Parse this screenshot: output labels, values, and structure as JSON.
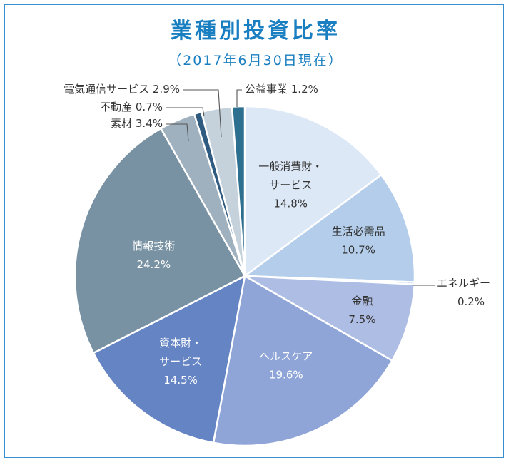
{
  "header": {
    "title": "業種別投資比率",
    "subtitle": "（2017年6月30日現在）"
  },
  "chart_data": {
    "type": "pie",
    "title": "業種別投資比率",
    "subtitle": "（2017年6月30日現在）",
    "slices": [
      {
        "name": "一般消費財・サービス",
        "lines": [
          "一般消費財・",
          "サービス"
        ],
        "value": 14.8,
        "value_label": "14.8%",
        "color": "#dde8f6",
        "text_color": "#333333",
        "label_pos": "inside"
      },
      {
        "name": "生活必需品",
        "lines": [
          "生活必需品"
        ],
        "value": 10.7,
        "value_label": "10.7%",
        "color": "#b3cdea",
        "text_color": "#333333",
        "label_pos": "inside"
      },
      {
        "name": "エネルギー",
        "lines": [
          "エネルギー"
        ],
        "value": 0.2,
        "value_label": "0.2%",
        "color": "#8db2d8",
        "text_color": "#333333",
        "label_pos": "outside-right"
      },
      {
        "name": "金融",
        "lines": [
          "金融"
        ],
        "value": 7.5,
        "value_label": "7.5%",
        "color": "#aebde3",
        "text_color": "#333333",
        "label_pos": "inside"
      },
      {
        "name": "ヘルスケア",
        "lines": [
          "ヘルスケア"
        ],
        "value": 19.6,
        "value_label": "19.6%",
        "color": "#8fa5d7",
        "text_color": "#ffffff",
        "label_pos": "inside"
      },
      {
        "name": "資本財・サービス",
        "lines": [
          "資本財・",
          "サービス"
        ],
        "value": 14.5,
        "value_label": "14.5%",
        "color": "#6584c3",
        "text_color": "#ffffff",
        "label_pos": "inside"
      },
      {
        "name": "情報技術",
        "lines": [
          "情報技術"
        ],
        "value": 24.2,
        "value_label": "24.2%",
        "color": "#7892a3",
        "text_color": "#ffffff",
        "label_pos": "inside"
      },
      {
        "name": "素材",
        "lines": [
          "素材"
        ],
        "value": 3.4,
        "value_label": "3.4%",
        "color": "#9fb1bf",
        "text_color": "#333333",
        "label_pos": "outside-left"
      },
      {
        "name": "不動産",
        "lines": [
          "不動産"
        ],
        "value": 0.7,
        "value_label": "0.7%",
        "color": "#2f5b80",
        "text_color": "#333333",
        "label_pos": "outside-left"
      },
      {
        "name": "電気通信サービス",
        "lines": [
          "電気通信サービス"
        ],
        "value": 2.9,
        "value_label": "2.9%",
        "color": "#c5d2dc",
        "text_color": "#333333",
        "label_pos": "outside-left"
      },
      {
        "name": "公益事業",
        "lines": [
          "公益事業"
        ],
        "value": 1.2,
        "value_label": "1.2%",
        "color": "#2d6f8f",
        "text_color": "#333333",
        "label_pos": "outside-right"
      }
    ]
  }
}
